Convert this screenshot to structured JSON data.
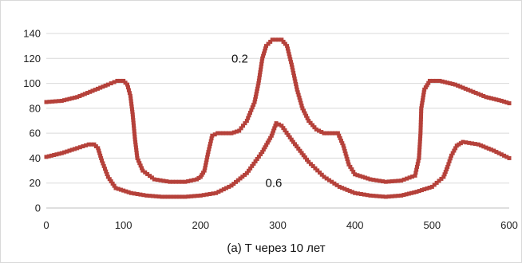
{
  "chart_data": {
    "type": "scatter",
    "title": "",
    "caption": "(a) T через 10 лет",
    "xlabel": "",
    "ylabel": "",
    "xlim": [
      0,
      600
    ],
    "ylim": [
      0,
      140
    ],
    "xticks": [
      0,
      100,
      200,
      300,
      400,
      500,
      600
    ],
    "yticks": [
      0,
      20,
      40,
      60,
      80,
      100,
      120,
      140
    ],
    "grid": "horizontal",
    "legend": "none",
    "marker_color": "#b5413a",
    "annotations": [
      {
        "text": "0.2",
        "x": 240,
        "y": 120
      },
      {
        "text": "0.6",
        "x": 284,
        "y": 20
      }
    ],
    "series": [
      {
        "points": [
          [
            0,
            85
          ],
          [
            20,
            86
          ],
          [
            40,
            89
          ],
          [
            60,
            94
          ],
          [
            80,
            99
          ],
          [
            92,
            102
          ],
          [
            100,
            102
          ],
          [
            105,
            99
          ],
          [
            109,
            90
          ],
          [
            112,
            75
          ],
          [
            115,
            55
          ],
          [
            118,
            40
          ],
          [
            125,
            30
          ],
          [
            140,
            23
          ],
          [
            160,
            21
          ],
          [
            180,
            21
          ],
          [
            195,
            23
          ],
          [
            200,
            25
          ],
          [
            205,
            30
          ],
          [
            210,
            45
          ],
          [
            215,
            58
          ],
          [
            222,
            60
          ],
          [
            240,
            60
          ],
          [
            250,
            62
          ],
          [
            260,
            70
          ],
          [
            270,
            85
          ],
          [
            275,
            100
          ],
          [
            280,
            120
          ],
          [
            285,
            130
          ],
          [
            293,
            135
          ],
          [
            305,
            135
          ],
          [
            312,
            130
          ],
          [
            318,
            115
          ],
          [
            325,
            95
          ],
          [
            332,
            80
          ],
          [
            340,
            70
          ],
          [
            350,
            63
          ],
          [
            360,
            60
          ],
          [
            378,
            60
          ],
          [
            385,
            50
          ],
          [
            392,
            35
          ],
          [
            400,
            27
          ],
          [
            420,
            23
          ],
          [
            440,
            21
          ],
          [
            460,
            22
          ],
          [
            478,
            26
          ],
          [
            483,
            40
          ],
          [
            485,
            60
          ],
          [
            486,
            80
          ],
          [
            490,
            95
          ],
          [
            497,
            102
          ],
          [
            510,
            102
          ],
          [
            530,
            99
          ],
          [
            550,
            94
          ],
          [
            570,
            89
          ],
          [
            590,
            86
          ],
          [
            600,
            84
          ]
        ]
      },
      {
        "points": [
          [
            0,
            41
          ],
          [
            20,
            44
          ],
          [
            40,
            48
          ],
          [
            55,
            51
          ],
          [
            62,
            51
          ],
          [
            67,
            48
          ],
          [
            72,
            38
          ],
          [
            80,
            25
          ],
          [
            90,
            16
          ],
          [
            110,
            12
          ],
          [
            130,
            10
          ],
          [
            150,
            9
          ],
          [
            180,
            9
          ],
          [
            200,
            10
          ],
          [
            220,
            12
          ],
          [
            240,
            18
          ],
          [
            260,
            28
          ],
          [
            280,
            45
          ],
          [
            292,
            58
          ],
          [
            298,
            68
          ],
          [
            305,
            66
          ],
          [
            320,
            53
          ],
          [
            340,
            37
          ],
          [
            360,
            25
          ],
          [
            380,
            17
          ],
          [
            400,
            12
          ],
          [
            420,
            10
          ],
          [
            440,
            9
          ],
          [
            460,
            10
          ],
          [
            480,
            13
          ],
          [
            500,
            17
          ],
          [
            515,
            25
          ],
          [
            520,
            33
          ],
          [
            525,
            42
          ],
          [
            532,
            50
          ],
          [
            540,
            53
          ],
          [
            560,
            51
          ],
          [
            580,
            46
          ],
          [
            600,
            40
          ]
        ]
      }
    ]
  }
}
